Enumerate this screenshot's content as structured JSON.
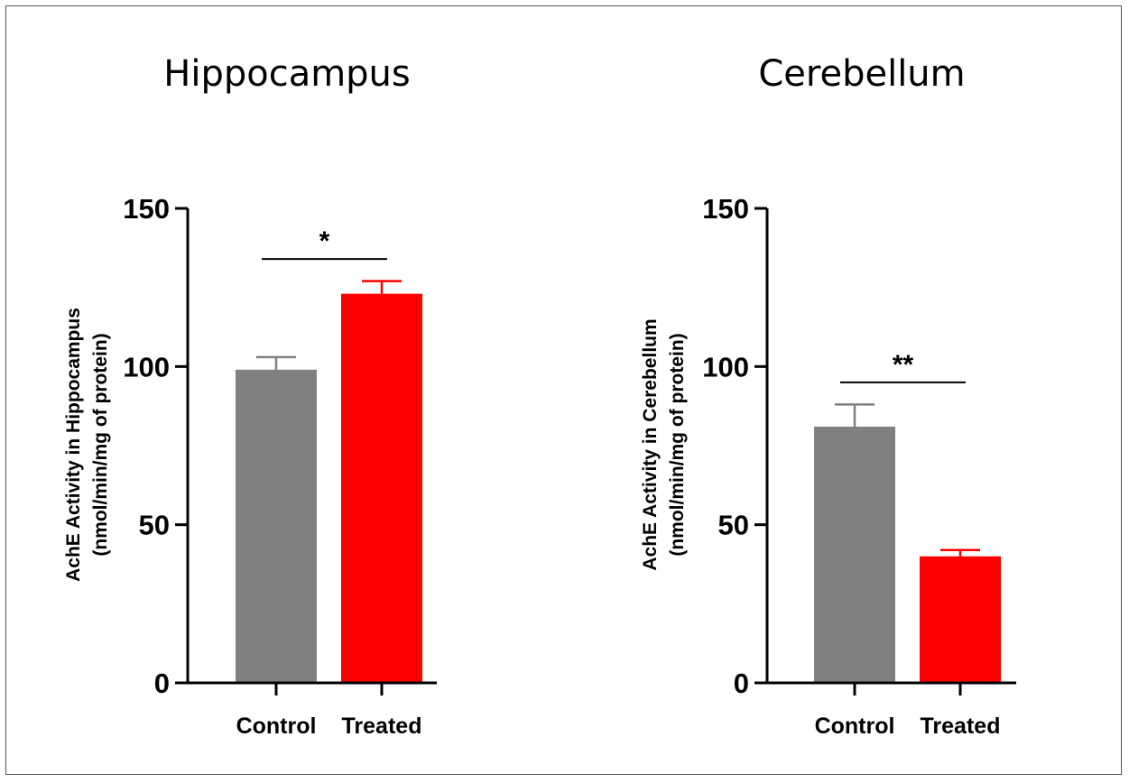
{
  "chart_data": [
    {
      "type": "bar",
      "title": "Hippocampus",
      "ylabel_line1": "AchE Activity in Hippocampus",
      "ylabel_line2": "(nmol/min/mg of protein)",
      "categories": [
        "Control",
        "Treated"
      ],
      "values": [
        99,
        123
      ],
      "errors": [
        4,
        4
      ],
      "colors": [
        "#808080",
        "#ff0000"
      ],
      "ylim": [
        0,
        150
      ],
      "yticks": [
        0,
        50,
        100,
        150
      ],
      "significance": {
        "label": "*",
        "y": 134
      }
    },
    {
      "type": "bar",
      "title": "Cerebellum",
      "ylabel_line1": "AchE Activity in Cerebellum",
      "ylabel_line2": "(nmol/min/mg of protein)",
      "categories": [
        "Control",
        "Treated"
      ],
      "values": [
        81,
        40
      ],
      "errors": [
        7,
        2
      ],
      "colors": [
        "#808080",
        "#ff0000"
      ],
      "ylim": [
        0,
        150
      ],
      "yticks": [
        0,
        50,
        100,
        150
      ],
      "significance": {
        "label": "**",
        "y": 95
      }
    }
  ]
}
